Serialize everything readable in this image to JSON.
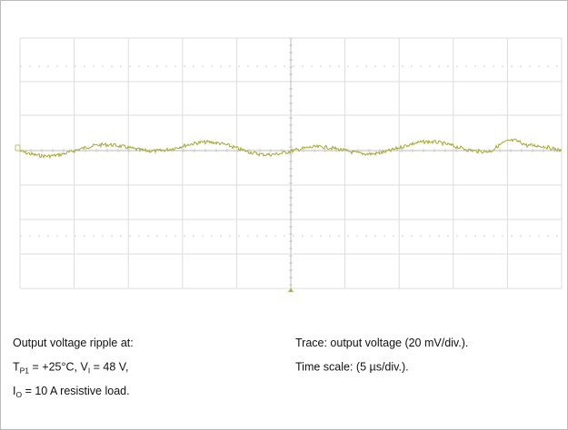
{
  "caption": {
    "left": [
      [
        {
          "text": "Output voltage ripple  at:"
        }
      ],
      [
        {
          "text": "T"
        },
        {
          "text": "P1",
          "sub": true
        },
        {
          "text": " = +25°C, V"
        },
        {
          "text": "I",
          "sub": true
        },
        {
          "text": " = 48 V,"
        }
      ],
      [
        {
          "text": "I"
        },
        {
          "text": "O",
          "sub": true
        },
        {
          "text": " = 10 A resistive load."
        }
      ]
    ],
    "right": [
      [
        {
          "text": "Trace: output voltage (20 mV/div.)."
        }
      ],
      [
        {
          "text": "Time scale: (5 µs/div.)."
        }
      ]
    ]
  }
}
